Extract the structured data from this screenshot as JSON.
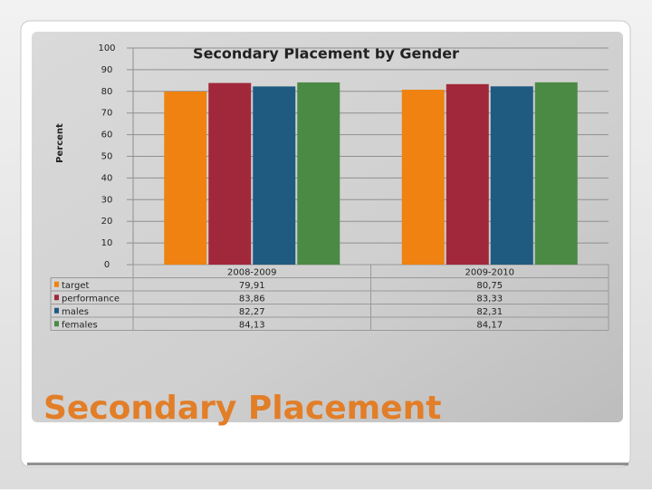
{
  "slide_title": "Secondary Placement",
  "chart_data": {
    "type": "bar",
    "title": "Secondary Placement by Gender",
    "y_label": "Percent",
    "categories": [
      "2008-2009",
      "2009-2010"
    ],
    "series": [
      {
        "name": "target",
        "color": "#ef8210",
        "values": [
          79.91,
          80.75
        ],
        "value_labels": [
          "79,91",
          "80,75"
        ]
      },
      {
        "name": "performance",
        "color": "#a1283b",
        "values": [
          83.86,
          83.33
        ],
        "value_labels": [
          "83,86",
          "83,33"
        ]
      },
      {
        "name": "males",
        "color": "#1f5a80",
        "values": [
          82.27,
          82.31
        ],
        "value_labels": [
          "82,27",
          "82,31"
        ]
      },
      {
        "name": "females",
        "color": "#4b8a44",
        "values": [
          84.13,
          84.17
        ],
        "value_labels": [
          "84,13",
          "84,17"
        ]
      }
    ],
    "ylim": [
      0,
      100
    ],
    "yticks": [
      0,
      10,
      20,
      30,
      40,
      50,
      60,
      70,
      80,
      90,
      100
    ],
    "grid": true
  }
}
